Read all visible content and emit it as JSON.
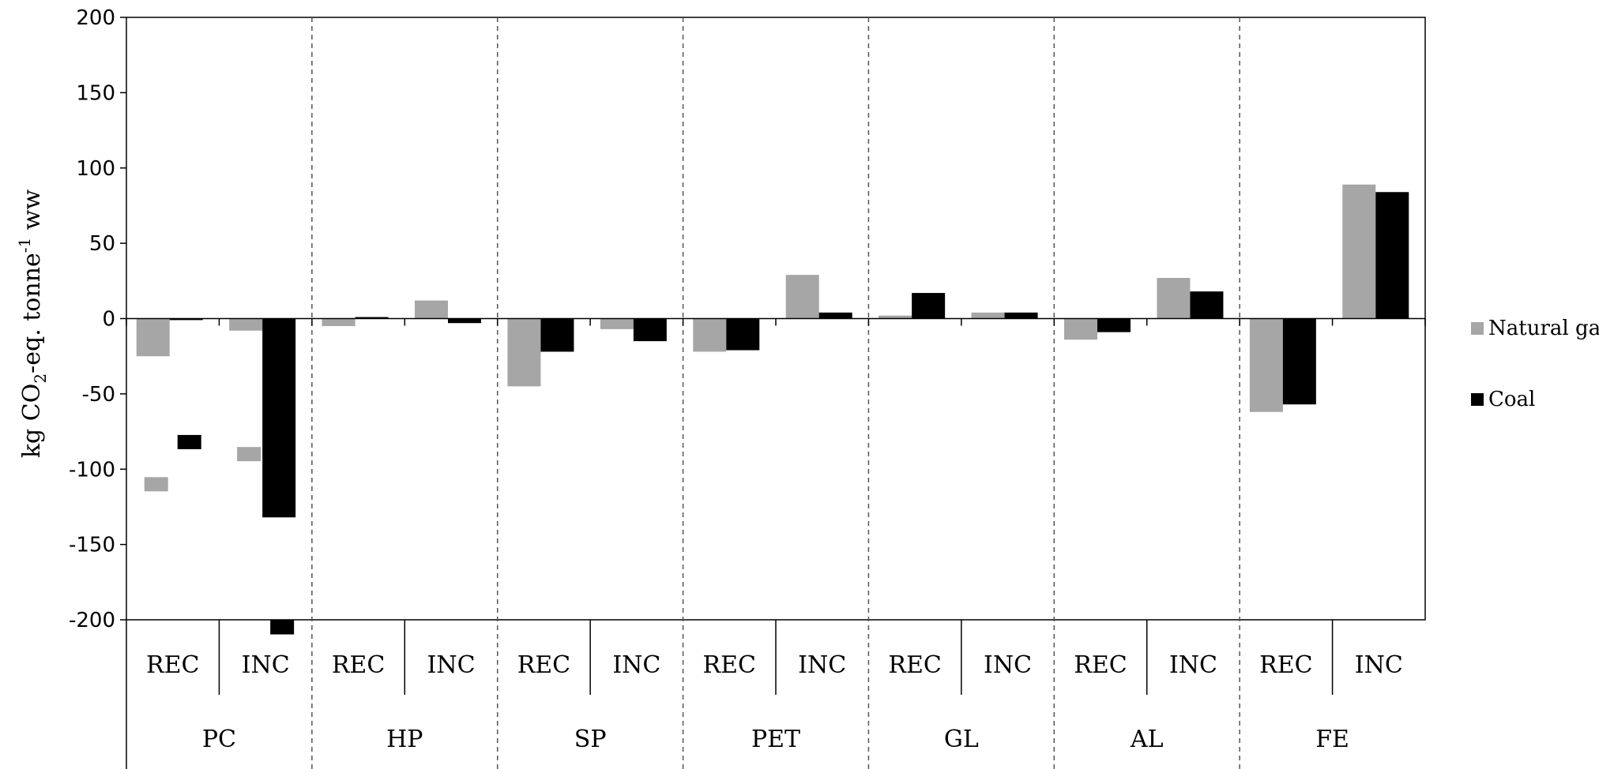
{
  "chart_data": {
    "type": "bar",
    "ylabel": "kg CO2-eq. tonne-1 ww",
    "ylabel_parts": {
      "pre": "kg CO",
      "sub": "2",
      "mid": "-eq. tonne",
      "sup": "-1",
      "post": " ww"
    },
    "ylim": [
      -200,
      200
    ],
    "yticks": [
      200,
      150,
      100,
      50,
      0,
      -50,
      -100,
      -150,
      -200
    ],
    "grid": false,
    "legend_position": "right",
    "groups": [
      "PC",
      "HP",
      "SP",
      "PET",
      "GL",
      "AL",
      "FE"
    ],
    "categories": [
      "REC",
      "INC",
      "REC",
      "INC",
      "REC",
      "INC",
      "REC",
      "INC",
      "REC",
      "INC",
      "REC",
      "INC",
      "REC",
      "INC"
    ],
    "series": [
      {
        "name": "Natural gas",
        "color": "#a6a6a6",
        "values": [
          -25,
          -8,
          -5,
          12,
          -45,
          -7,
          -22,
          29,
          2,
          4,
          -14,
          27,
          -62,
          89
        ],
        "error_markers": [
          -110,
          -90,
          null,
          null,
          null,
          null,
          null,
          null,
          null,
          null,
          null,
          null,
          null,
          null
        ]
      },
      {
        "name": "Coal",
        "color": "#000000",
        "values": [
          -1,
          -132,
          1,
          -3,
          -22,
          -15,
          -21,
          4,
          17,
          4,
          -9,
          18,
          -57,
          84
        ],
        "error_markers": [
          -82,
          -205,
          null,
          null,
          null,
          null,
          null,
          null,
          null,
          null,
          null,
          null,
          null,
          null
        ]
      }
    ]
  }
}
